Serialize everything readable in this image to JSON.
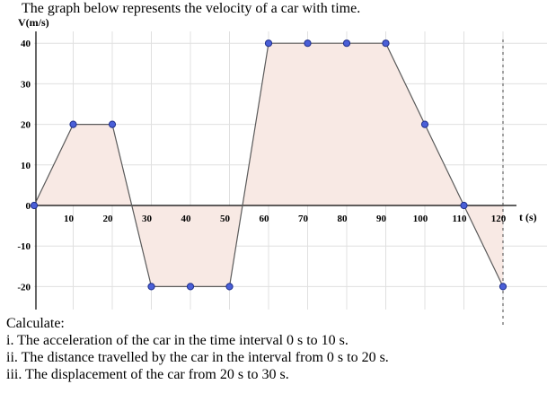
{
  "prompt": "The graph below represents the velocity of a car with time.",
  "questions": {
    "heading": "Calculate:",
    "items": [
      "i. The acceleration of the car in the time interval 0 s to 10 s.",
      "ii. The distance travelled by the car in the interval from 0 s to 20 s.",
      "iii. The displacement of the car from 20 s to 30 s."
    ]
  },
  "colors": {
    "fill": "#f8e9e4",
    "line": "#5a5a5a",
    "point": "#4a5fd8",
    "grid": "#e0e0e0",
    "axis": "#000000"
  },
  "chart_data": {
    "type": "line",
    "title": "",
    "xlabel": "t (s)",
    "ylabel": "V(m/s)",
    "xlim": [
      0,
      120
    ],
    "ylim": [
      -20,
      40
    ],
    "x_ticks": [
      10,
      20,
      30,
      40,
      50,
      60,
      70,
      80,
      90,
      100,
      110,
      120
    ],
    "y_ticks": [
      40,
      30,
      20,
      10,
      0,
      -10,
      -20
    ],
    "x_tick_labels": [
      "10",
      "20",
      "30",
      "40",
      "50",
      "60",
      "70",
      "80",
      "90",
      "100",
      "110",
      "120"
    ],
    "y_tick_labels": [
      "40",
      "30",
      "20",
      "10",
      "0",
      "-10",
      "-20"
    ],
    "grid": true,
    "filled_area": true,
    "dashed_vertical_line_at_x": 120,
    "series": [
      {
        "x": [
          0,
          10,
          20,
          30,
          40,
          50,
          60,
          70,
          80,
          90,
          100,
          110,
          120
        ],
        "y": [
          0,
          20,
          20,
          -20,
          -20,
          -20,
          40,
          40,
          40,
          40,
          20,
          0,
          -20
        ],
        "markers_at_x": [
          0,
          10,
          20,
          30,
          40,
          50,
          60,
          70,
          80,
          90,
          100,
          110,
          120
        ]
      }
    ]
  }
}
